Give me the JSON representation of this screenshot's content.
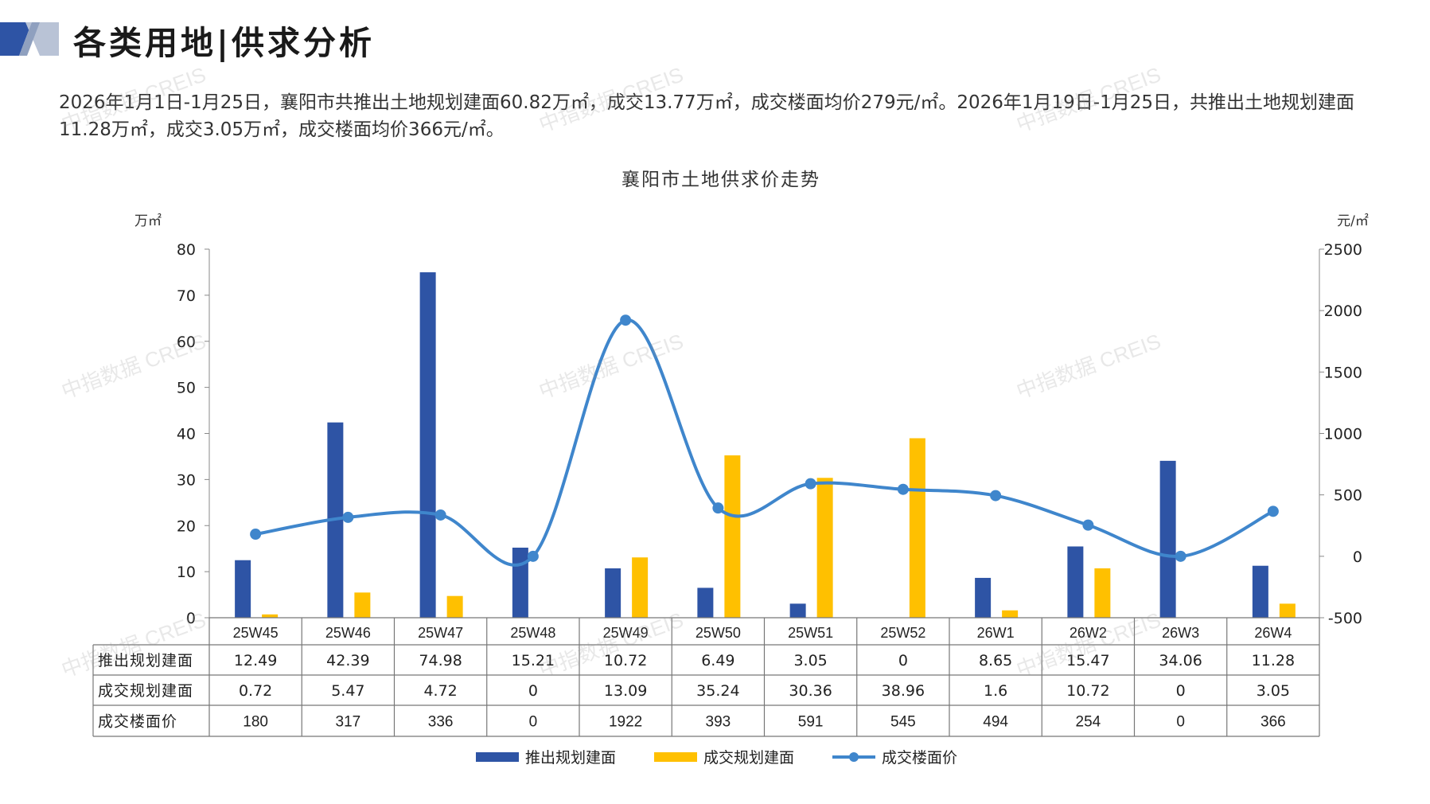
{
  "header": {
    "title": "各类用地|供求分析"
  },
  "summary": "2026年1月1日-1月25日，襄阳市共推出土地规划建面60.82万㎡，成交13.77万㎡，成交楼面均价279元/㎡。2026年1月19日-1月25日，共推出土地规划建面11.28万㎡，成交3.05万㎡，成交楼面均价366元/㎡。",
  "watermark": "中指数据 CREIS",
  "colors": {
    "supply": "#2e54a5",
    "deal": "#ffc000",
    "price": "#3f86cc",
    "logo_dark": "#2e54a5",
    "logo_light": "#b9c3d6"
  },
  "chart_data": {
    "type": "bar",
    "title": "襄阳市土地供求价走势",
    "y_left_unit": "万㎡",
    "y_right_unit": "元/㎡",
    "y_left_ticks": [
      "80",
      "70",
      "60",
      "50",
      "40",
      "30",
      "20",
      "10",
      "0"
    ],
    "y_right_ticks": [
      "2500",
      "2000",
      "1500",
      "1000",
      "500",
      "0",
      "-500"
    ],
    "y_left_range": [
      0,
      80
    ],
    "y_right_range": [
      -500,
      2500
    ],
    "categories": [
      "25W45",
      "25W46",
      "25W47",
      "25W48",
      "25W49",
      "25W50",
      "25W51",
      "25W52",
      "26W1",
      "26W2",
      "26W3",
      "26W4"
    ],
    "series": [
      {
        "name": "推出规划建面",
        "kind": "bar",
        "axis": "left",
        "values": [
          12.49,
          42.39,
          74.98,
          15.21,
          10.72,
          6.49,
          3.05,
          0,
          8.65,
          15.47,
          34.06,
          11.28
        ],
        "labels": [
          "12.49",
          "42.39",
          "74.98",
          "15.21",
          "10.72",
          "6.49",
          "3.05",
          "0",
          "8.65",
          "15.47",
          "34.06",
          "11.28"
        ]
      },
      {
        "name": "成交规划建面",
        "kind": "bar",
        "axis": "left",
        "values": [
          0.72,
          5.47,
          4.72,
          0,
          13.09,
          35.24,
          30.36,
          38.96,
          1.6,
          10.72,
          0,
          3.05
        ],
        "labels": [
          "0.72",
          "5.47",
          "4.72",
          "0",
          "13.09",
          "35.24",
          "30.36",
          "38.96",
          "1.6",
          "10.72",
          "0",
          "3.05"
        ]
      },
      {
        "name": "成交楼面价",
        "kind": "line",
        "axis": "right",
        "values": [
          180,
          317,
          336,
          0,
          1922,
          393,
          591,
          545,
          494,
          254,
          0,
          366
        ],
        "labels": [
          "180",
          "317",
          "336",
          "0",
          "1922",
          "393",
          "591",
          "545",
          "494",
          "254",
          "0",
          "366"
        ]
      }
    ],
    "legend": "bottom",
    "data_table": true
  }
}
